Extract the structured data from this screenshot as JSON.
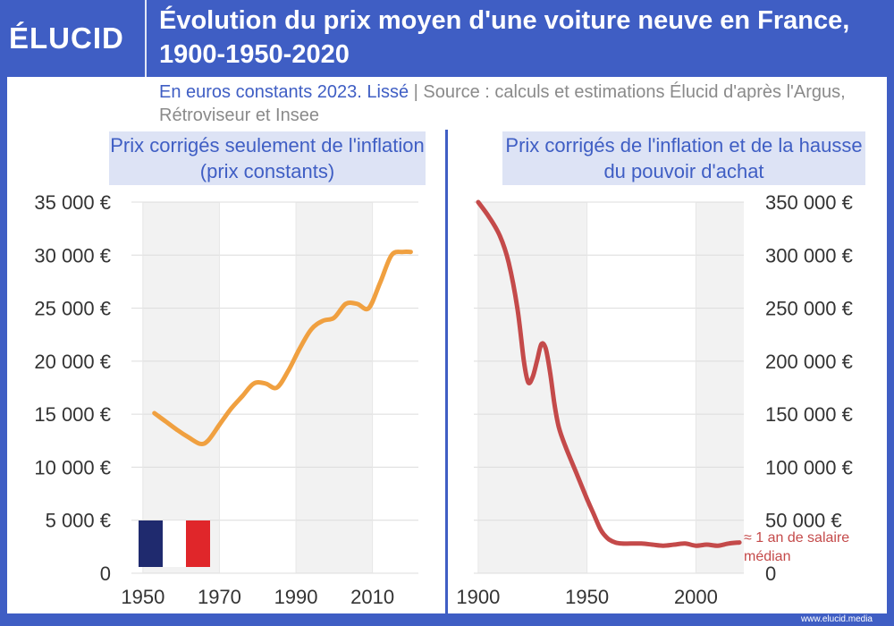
{
  "header": {
    "logo": "ÉLUCID",
    "title": "Évolution du prix moyen d'une voiture neuve en France, 1900-1950-2020"
  },
  "subtitle": {
    "part1": "En euros constants 2023. Lissé",
    "separator": " | ",
    "part2": "Source : calculs et estimations Élucid d'après l'Argus, Rétroviseur et Insee"
  },
  "footer": "www.elucid.media",
  "colors": {
    "brand": "#3f5ec4",
    "left_line": "#f0a040",
    "right_line": "#c44a4a",
    "band": "#f2f2f2",
    "flag_blue": "#1f2a6e",
    "flag_white": "#ffffff",
    "flag_red": "#e0262a"
  },
  "chart_data": [
    {
      "type": "line",
      "title": "Prix corrigés seulement de l'inflation (prix constants)",
      "xlim": [
        1947,
        2022
      ],
      "ylim": [
        0,
        35000
      ],
      "xticks": [
        1950,
        1970,
        1990,
        2010
      ],
      "xtick_labels": [
        "1950",
        "1970",
        "1990",
        "2010"
      ],
      "yticks": [
        0,
        5000,
        10000,
        15000,
        20000,
        25000,
        30000,
        35000
      ],
      "ytick_labels": [
        "0",
        "5 000 €",
        "10 000 €",
        "15 000 €",
        "20 000 €",
        "25 000 €",
        "30 000 €",
        "35 000 €"
      ],
      "y_axis_side": "left",
      "shaded_bands": [
        [
          1950,
          1970
        ],
        [
          1990,
          2010
        ]
      ],
      "grid": true,
      "series": [
        {
          "x": [
            1953,
            1956,
            1959,
            1962,
            1965,
            1967,
            1970,
            1973,
            1976,
            1979,
            1982,
            1985,
            1988,
            1991,
            1994,
            1997,
            2000,
            2003,
            2006,
            2009,
            2012,
            2015,
            2018,
            2020
          ],
          "values": [
            15100,
            14300,
            13500,
            12800,
            12200,
            12500,
            14000,
            15500,
            16700,
            17900,
            17900,
            17500,
            19100,
            21200,
            23000,
            23800,
            24100,
            25400,
            25400,
            25000,
            27400,
            30000,
            30300,
            30300
          ]
        }
      ]
    },
    {
      "type": "line",
      "title": "Prix corrigés de l'inflation et de la hausse du pouvoir d'achat",
      "xlim": [
        1898,
        2022
      ],
      "ylim": [
        0,
        350000
      ],
      "xticks": [
        1900,
        1950,
        2000
      ],
      "xtick_labels": [
        "1900",
        "1950",
        "2000"
      ],
      "yticks": [
        0,
        50000,
        100000,
        150000,
        200000,
        250000,
        300000,
        350000
      ],
      "ytick_labels": [
        "0",
        "50 000 €",
        "100 000 €",
        "150 000 €",
        "200 000 €",
        "250 000 €",
        "300 000 €",
        "350 000 €"
      ],
      "y_axis_side": "right",
      "shaded_bands": [
        [
          1900,
          1950
        ],
        [
          2000,
          2022
        ]
      ],
      "grid": true,
      "annotation": "≈ 1 an de salaire médian",
      "annotation_lines": [
        "≈ 1 an de salaire",
        "médian"
      ],
      "series": [
        {
          "x": [
            1900,
            1905,
            1910,
            1914,
            1918,
            1921,
            1923,
            1925,
            1927,
            1929,
            1931,
            1933,
            1935,
            1937,
            1940,
            1945,
            1950,
            1953,
            1956,
            1958,
            1960,
            1963,
            1966,
            1970,
            1975,
            1980,
            1985,
            1990,
            1995,
            2000,
            2005,
            2010,
            2015,
            2020
          ],
          "values": [
            350000,
            336000,
            318000,
            293000,
            250000,
            200000,
            180000,
            185000,
            200000,
            216000,
            212000,
            190000,
            160000,
            138000,
            120000,
            95000,
            70000,
            56000,
            42000,
            36000,
            32000,
            29000,
            28000,
            28000,
            28000,
            27000,
            26000,
            27000,
            28000,
            26000,
            27000,
            26000,
            28000,
            29000
          ]
        }
      ]
    }
  ]
}
